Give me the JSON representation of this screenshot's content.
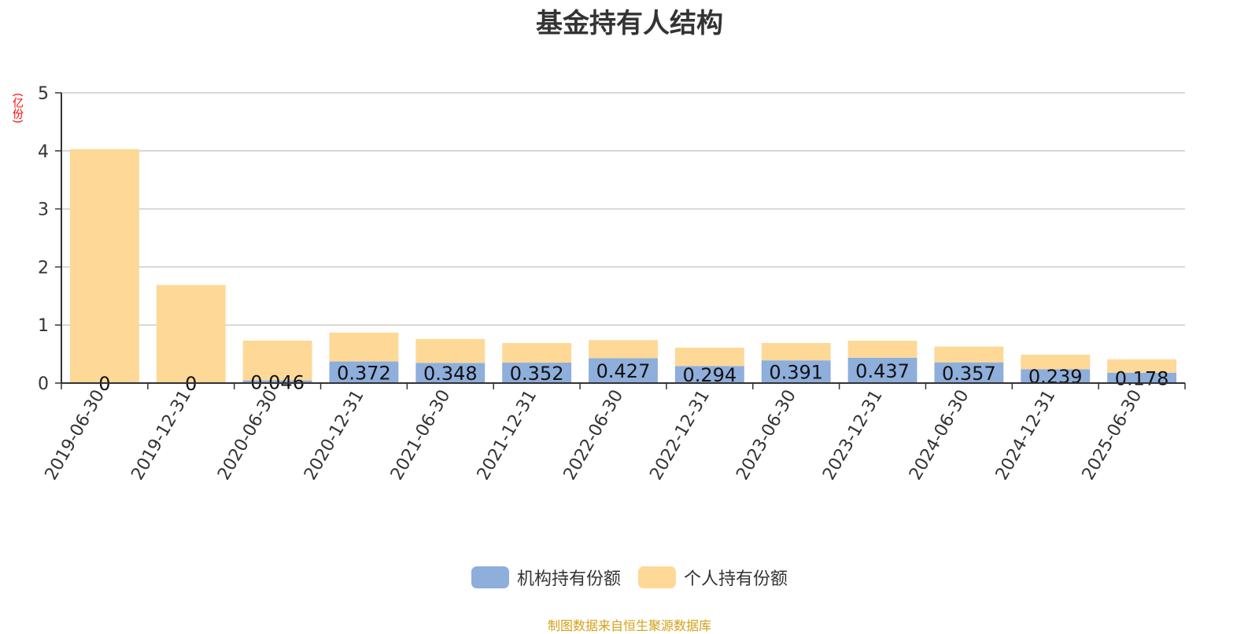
{
  "chart_data": {
    "type": "bar",
    "stacked": true,
    "title": "基金持有人结构",
    "ylabel": "(亿份)",
    "ylim": [
      0,
      5
    ],
    "yticks": [
      "0",
      "1",
      "2",
      "3",
      "4",
      "5"
    ],
    "grid": true,
    "legend_position": "bottom",
    "categories": [
      "2019-06-30",
      "2019-12-31",
      "2020-06-30",
      "2020-12-31",
      "2021-06-30",
      "2021-12-31",
      "2022-06-30",
      "2022-12-31",
      "2023-06-30",
      "2023-12-31",
      "2024-06-30",
      "2024-12-31",
      "2025-06-30"
    ],
    "series": [
      {
        "name": "机构持有份额",
        "color": "#8eaedb",
        "values": [
          0,
          0,
          0.046,
          0.372,
          0.348,
          0.352,
          0.427,
          0.294,
          0.391,
          0.437,
          0.357,
          0.239,
          0.178
        ],
        "labels": [
          "0",
          "0",
          "0.046",
          "0.372",
          "0.348",
          "0.352",
          "0.427",
          "0.294",
          "0.391",
          "0.437",
          "0.357",
          "0.239",
          "0.178"
        ]
      },
      {
        "name": "个人持有份额",
        "color": "#fed897",
        "values": [
          4.03,
          1.69,
          0.686,
          0.498,
          0.412,
          0.338,
          0.313,
          0.316,
          0.299,
          0.293,
          0.273,
          0.251,
          0.232
        ]
      }
    ],
    "source": "制图数据来自恒生聚源数据库"
  }
}
